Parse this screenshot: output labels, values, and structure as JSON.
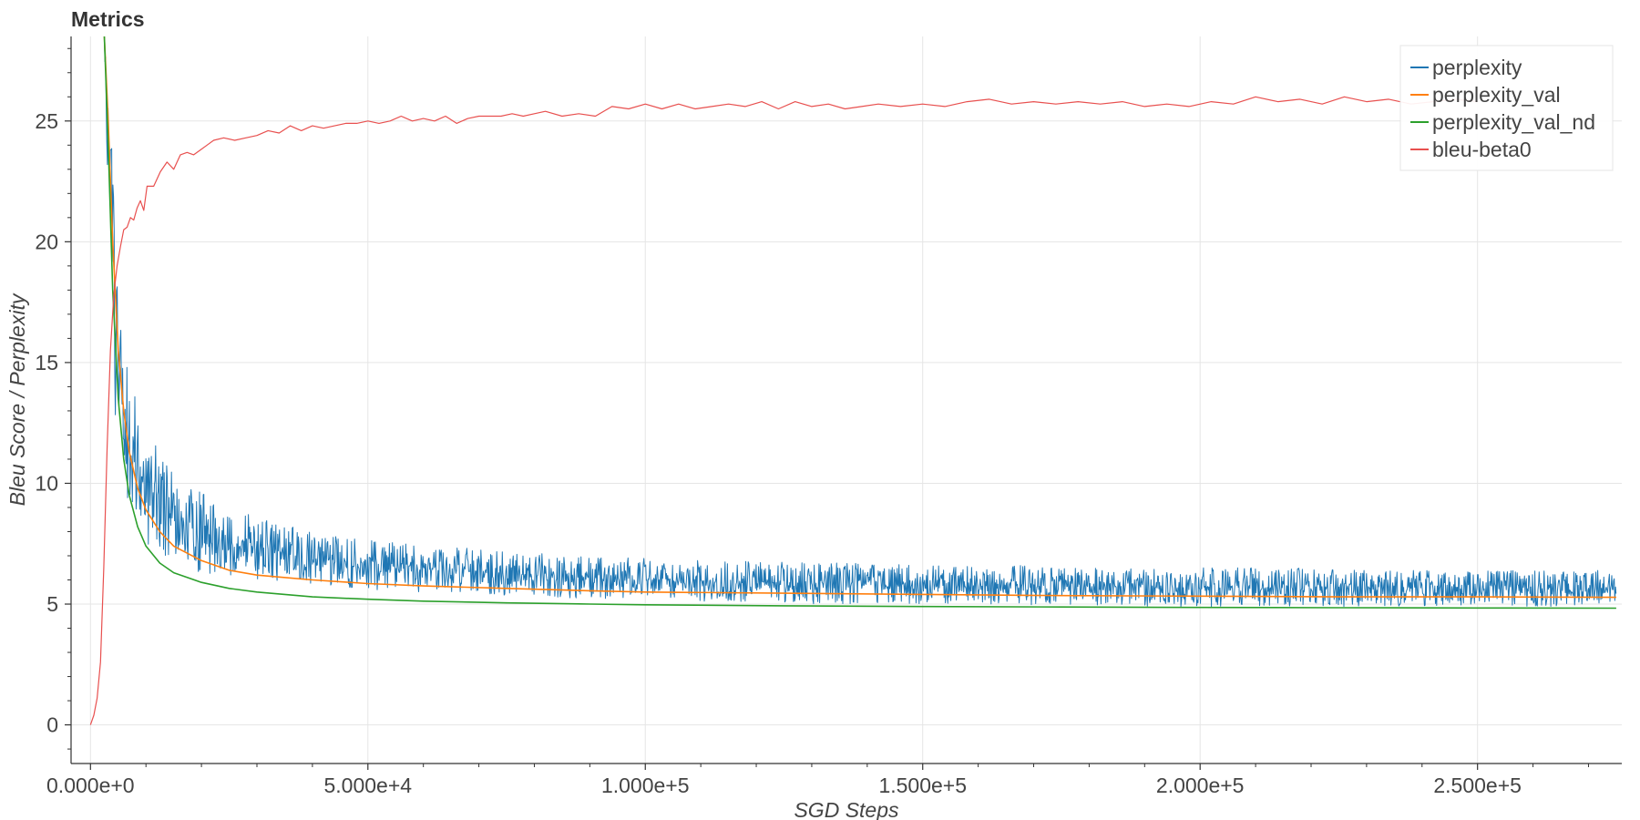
{
  "chart_data": {
    "type": "line",
    "title": "Metrics",
    "xlabel": "SGD Steps",
    "ylabel": "Bleu Score / Perplexity",
    "xlim": [
      -3500,
      276000
    ],
    "ylim": [
      -1.6,
      28.5
    ],
    "x_ticks": [
      {
        "value": 0,
        "label": "0.000e+0"
      },
      {
        "value": 50000,
        "label": "5.000e+4"
      },
      {
        "value": 100000,
        "label": "1.000e+5"
      },
      {
        "value": 150000,
        "label": "1.500e+5"
      },
      {
        "value": 200000,
        "label": "2.000e+5"
      },
      {
        "value": 250000,
        "label": "2.500e+5"
      }
    ],
    "y_ticks": [
      {
        "value": 0,
        "label": "0"
      },
      {
        "value": 5,
        "label": "5"
      },
      {
        "value": 10,
        "label": "10"
      },
      {
        "value": 15,
        "label": "15"
      },
      {
        "value": 20,
        "label": "20"
      },
      {
        "value": 25,
        "label": "25"
      }
    ],
    "grid": true,
    "legend_position": "top-right",
    "series": [
      {
        "name": "perplexity",
        "color": "#1f77b4",
        "style": "noisy-band",
        "x": [
          2500,
          3500,
          4500,
          5500,
          7000,
          9000,
          12000,
          16000,
          20000,
          25000,
          30000,
          40000,
          50000,
          60000,
          70000,
          80000,
          90000,
          100000,
          110000,
          120000,
          130000,
          140000,
          150000,
          160000,
          170000,
          180000,
          190000,
          200000,
          210000,
          220000,
          230000,
          240000,
          250000,
          260000,
          270000,
          275000
        ],
        "upper": [
          28.5,
          26.0,
          20.0,
          17.0,
          14.5,
          13.0,
          11.5,
          10.2,
          9.6,
          9.0,
          8.6,
          8.0,
          7.7,
          7.4,
          7.3,
          7.1,
          7.0,
          6.9,
          6.8,
          6.8,
          6.7,
          6.7,
          6.6,
          6.6,
          6.6,
          6.5,
          6.5,
          6.5,
          6.5,
          6.5,
          6.4,
          6.4,
          6.4,
          6.4,
          6.4,
          6.4
        ],
        "lower": [
          28.5,
          18.0,
          12.0,
          10.0,
          8.5,
          7.6,
          7.0,
          6.6,
          6.3,
          6.1,
          6.0,
          5.8,
          5.6,
          5.5,
          5.4,
          5.3,
          5.2,
          5.2,
          5.1,
          5.1,
          5.0,
          5.0,
          5.0,
          5.0,
          4.95,
          4.95,
          4.9,
          4.9,
          4.9,
          4.9,
          4.9,
          4.9,
          4.9,
          4.9,
          4.9,
          4.9
        ]
      },
      {
        "name": "perplexity_val",
        "color": "#ff7f0e",
        "x": [
          2500,
          3200,
          4000,
          5000,
          6000,
          7000,
          8500,
          10000,
          12500,
          15000,
          20000,
          25000,
          30000,
          40000,
          50000,
          60000,
          75000,
          90000,
          100000,
          125000,
          150000,
          175000,
          200000,
          225000,
          250000,
          275000
        ],
        "y": [
          28.5,
          25.0,
          20.0,
          15.5,
          13.0,
          11.3,
          9.8,
          8.9,
          8.0,
          7.4,
          6.8,
          6.4,
          6.2,
          6.0,
          5.85,
          5.75,
          5.65,
          5.55,
          5.5,
          5.45,
          5.4,
          5.35,
          5.33,
          5.3,
          5.3,
          5.28
        ]
      },
      {
        "name": "perplexity_val_nd",
        "color": "#2ca02c",
        "x": [
          2500,
          3200,
          4000,
          5000,
          6000,
          7000,
          8500,
          10000,
          12500,
          15000,
          20000,
          25000,
          30000,
          40000,
          50000,
          60000,
          75000,
          90000,
          100000,
          125000,
          150000,
          175000,
          200000,
          225000,
          250000,
          275000
        ],
        "y": [
          28.5,
          24.0,
          18.0,
          13.5,
          11.0,
          9.5,
          8.2,
          7.4,
          6.7,
          6.3,
          5.9,
          5.65,
          5.5,
          5.3,
          5.2,
          5.12,
          5.05,
          5.0,
          4.97,
          4.93,
          4.9,
          4.88,
          4.86,
          4.85,
          4.84,
          4.83
        ]
      },
      {
        "name": "bleu-beta0",
        "color": "#e8504f",
        "x": [
          0,
          600,
          1200,
          1800,
          2400,
          3000,
          3600,
          4200,
          4800,
          5400,
          6000,
          6600,
          7200,
          7800,
          8400,
          9000,
          9600,
          10200,
          11400,
          12600,
          13800,
          15000,
          16200,
          17400,
          18600,
          19800,
          21000,
          22200,
          24000,
          26000,
          28000,
          30000,
          32000,
          34000,
          36000,
          38000,
          40000,
          42000,
          44000,
          46000,
          48000,
          50000,
          52000,
          54000,
          56000,
          58000,
          60000,
          62000,
          64000,
          66000,
          68000,
          70000,
          72000,
          74000,
          76000,
          78000,
          80000,
          82000,
          85000,
          88000,
          91000,
          94000,
          97000,
          100000,
          103000,
          106000,
          109000,
          112000,
          115000,
          118000,
          121000,
          124000,
          127000,
          130000,
          133000,
          136000,
          139000,
          142000,
          146000,
          150000,
          154000,
          158000,
          162000,
          166000,
          170000,
          174000,
          178000,
          182000,
          186000,
          190000,
          194000,
          198000,
          202000,
          206000,
          210000,
          214000,
          218000,
          222000,
          226000,
          230000,
          234000,
          238000,
          242000,
          246000,
          250000
        ],
        "y": [
          0,
          0.4,
          1.1,
          2.6,
          6.5,
          11.5,
          15.5,
          17.8,
          19.0,
          19.8,
          20.5,
          20.6,
          21.0,
          20.9,
          21.4,
          21.7,
          21.3,
          22.3,
          22.3,
          22.9,
          23.3,
          23.0,
          23.6,
          23.7,
          23.6,
          23.8,
          24.0,
          24.2,
          24.3,
          24.2,
          24.3,
          24.4,
          24.6,
          24.5,
          24.8,
          24.6,
          24.8,
          24.7,
          24.8,
          24.9,
          24.9,
          25.0,
          24.9,
          25.0,
          25.2,
          25.0,
          25.1,
          25.0,
          25.2,
          24.9,
          25.1,
          25.2,
          25.2,
          25.2,
          25.3,
          25.2,
          25.3,
          25.4,
          25.2,
          25.3,
          25.2,
          25.6,
          25.5,
          25.7,
          25.5,
          25.7,
          25.5,
          25.6,
          25.7,
          25.6,
          25.8,
          25.5,
          25.8,
          25.6,
          25.7,
          25.5,
          25.6,
          25.7,
          25.6,
          25.7,
          25.6,
          25.8,
          25.9,
          25.7,
          25.8,
          25.7,
          25.8,
          25.7,
          25.8,
          25.6,
          25.7,
          25.6,
          25.8,
          25.7,
          26.0,
          25.8,
          25.9,
          25.7,
          26.0,
          25.8,
          25.9,
          25.7,
          25.8,
          25.9,
          25.8
        ]
      }
    ]
  }
}
